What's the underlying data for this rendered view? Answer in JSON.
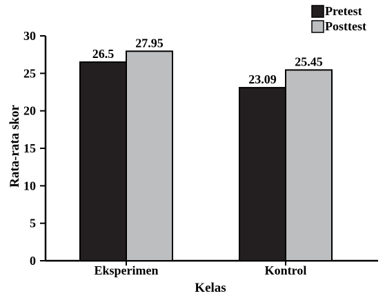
{
  "chart_data": {
    "type": "bar",
    "title": "",
    "xlabel": "Kelas",
    "ylabel": "Rata-rata skor",
    "categories": [
      "Eksperimen",
      "Kontrol"
    ],
    "series": [
      {
        "name": "Pretest",
        "values": [
          26.5,
          23.09
        ],
        "labels": [
          "26.5",
          "23.09"
        ],
        "color": "#231f20"
      },
      {
        "name": "Posttest",
        "values": [
          27.95,
          25.45
        ],
        "labels": [
          "27.95",
          "25.45"
        ],
        "color": "#bcbec0"
      }
    ],
    "ylim": [
      0,
      30
    ],
    "yticks": [
      0,
      5,
      10,
      15,
      20,
      25,
      30
    ],
    "grid": false,
    "legend": "top-right"
  }
}
